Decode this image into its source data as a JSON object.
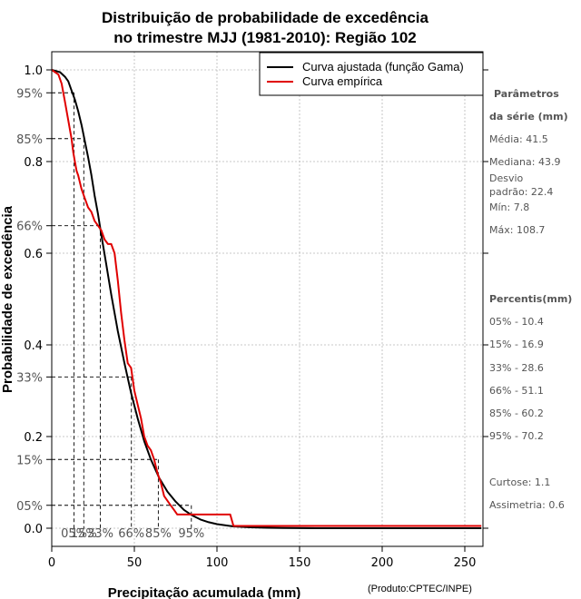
{
  "chart_data": {
    "type": "line",
    "title_line1": "Distribuição de probabilidade de excedência",
    "title_line2": "no trimestre MJJ (1981-2010): Região 102",
    "xlabel": "Precipitação acumulada (mm)",
    "ylabel": "Probabilidade de excedência",
    "credit": "(Produto:CPTEC/INPE)",
    "xlim": [
      0,
      260
    ],
    "ylim": [
      0,
      1
    ],
    "x_ticks": [
      0,
      50,
      100,
      150,
      200,
      250
    ],
    "y_ticks": [
      {
        "value": 0.0,
        "label": "0.0"
      },
      {
        "value": 0.2,
        "label": "0.2"
      },
      {
        "value": 0.4,
        "label": "0.4"
      },
      {
        "value": 0.6,
        "label": "0.6"
      },
      {
        "value": 0.8,
        "label": "0.8"
      },
      {
        "value": 1.0,
        "label": "1.0"
      }
    ],
    "percentile_ticks": [
      {
        "value": 0.05,
        "label": "05%"
      },
      {
        "value": 0.15,
        "label": "15%"
      },
      {
        "value": 0.33,
        "label": "33%"
      },
      {
        "value": 0.66,
        "label": "66%"
      },
      {
        "value": 0.85,
        "label": "85%"
      },
      {
        "value": 0.95,
        "label": "95%"
      }
    ],
    "percentile_markers": [
      {
        "label": "05%",
        "x": 13.5,
        "y": 0.95
      },
      {
        "label": "15%",
        "x": 19.4,
        "y": 0.85
      },
      {
        "label": "33%",
        "x": 29.4,
        "y": 0.66
      },
      {
        "label": "66%",
        "x": 48.2,
        "y": 0.33
      },
      {
        "label": "85%",
        "x": 64.5,
        "y": 0.15
      },
      {
        "label": "95%",
        "x": 84.5,
        "y": 0.05
      }
    ],
    "legend": {
      "position": "top-right",
      "entries": [
        {
          "label": "Curva ajustada (função Gama)",
          "color": "#000000"
        },
        {
          "label": "Curva empírica",
          "color": "#e00000"
        }
      ]
    },
    "series": [
      {
        "name": "Curva ajustada (função Gama)",
        "color": "#000000",
        "x": [
          0,
          5,
          8,
          10,
          12,
          14,
          16,
          18,
          20,
          22,
          24,
          26,
          28,
          30,
          33,
          36,
          40,
          44,
          48,
          52,
          56,
          60,
          65,
          70,
          75,
          80,
          85,
          90,
          95,
          100,
          110,
          120,
          130,
          140,
          150,
          160,
          180,
          200,
          220,
          240,
          260
        ],
        "y": [
          1.0,
          0.995,
          0.985,
          0.975,
          0.955,
          0.935,
          0.91,
          0.88,
          0.845,
          0.81,
          0.77,
          0.725,
          0.685,
          0.64,
          0.575,
          0.51,
          0.43,
          0.36,
          0.295,
          0.24,
          0.19,
          0.15,
          0.11,
          0.08,
          0.058,
          0.04,
          0.028,
          0.019,
          0.013,
          0.009,
          0.004,
          0.002,
          0.001,
          0.0005,
          0.0002,
          0.0,
          0.0,
          0.0,
          0.0,
          0.0,
          0.0
        ]
      },
      {
        "name": "Curva empírica",
        "color": "#e00000",
        "x": [
          0,
          4,
          6,
          8,
          10,
          12,
          13,
          14,
          15,
          16,
          18,
          20,
          22,
          24,
          26,
          28,
          30,
          32,
          34,
          36,
          38,
          40,
          42,
          44,
          46,
          48,
          50,
          52,
          54,
          56,
          58,
          60,
          62,
          64,
          66,
          68,
          70,
          72,
          74,
          76,
          80,
          90,
          100,
          108,
          110,
          150,
          200,
          260
        ],
        "y": [
          1.0,
          0.99,
          0.97,
          0.93,
          0.89,
          0.85,
          0.82,
          0.8,
          0.78,
          0.77,
          0.74,
          0.72,
          0.7,
          0.69,
          0.67,
          0.66,
          0.65,
          0.63,
          0.62,
          0.62,
          0.6,
          0.54,
          0.47,
          0.41,
          0.36,
          0.35,
          0.3,
          0.27,
          0.24,
          0.2,
          0.18,
          0.17,
          0.15,
          0.12,
          0.1,
          0.07,
          0.06,
          0.05,
          0.04,
          0.03,
          0.03,
          0.03,
          0.03,
          0.03,
          0.005,
          0.005,
          0.005,
          0.005
        ]
      }
    ],
    "side_panel": {
      "params_heading_1": "Parâmetros",
      "params_heading_2": "da série (mm)",
      "media": "Média: 41.5",
      "mediana": "Mediana: 43.9",
      "desvio_1": "Desvio",
      "desvio_2": "padrão: 22.4",
      "min": "Mín: 7.8",
      "max": "Máx: 108.7",
      "percentis_heading": "Percentis(mm)",
      "p05": "05% - 10.4",
      "p15": "15% - 16.9",
      "p33": "33% - 28.6",
      "p66": "66% - 51.1",
      "p85": "85% - 60.2",
      "p95": "95% - 70.2",
      "curtose": "Curtose: 1.1",
      "assimetria": "Assimetria: 0.6"
    }
  }
}
